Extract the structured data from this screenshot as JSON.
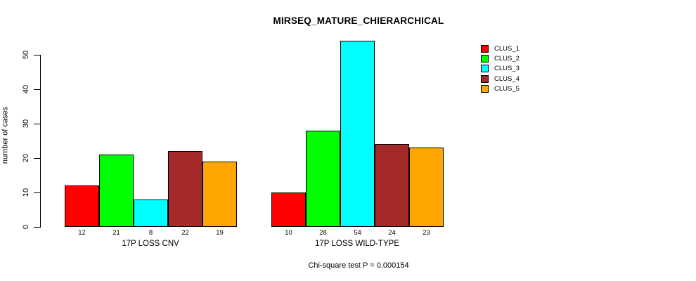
{
  "title": "MIRSEQ_MATURE_CHIERARCHICAL",
  "ylabel": "number of cases",
  "caption": "Chi-square test P = 0.000154",
  "legend": {
    "position": "top-right",
    "items": [
      {
        "label": "CLUS_1",
        "color": "#FF0000"
      },
      {
        "label": "CLUS_2",
        "color": "#00FF00"
      },
      {
        "label": "CLUS_3",
        "color": "#00FFFF"
      },
      {
        "label": "CLUS_4",
        "color": "#A52A2A"
      },
      {
        "label": "CLUS_5",
        "color": "#FFA500"
      }
    ]
  },
  "chart_data": {
    "type": "bar",
    "title": "MIRSEQ_MATURE_CHIERARCHICAL",
    "xlabel": "",
    "ylabel": "number of cases",
    "ylim": [
      0,
      54
    ],
    "yticks": [
      0,
      10,
      20,
      30,
      40,
      50
    ],
    "grid": false,
    "legend_position": "top-right",
    "series": [
      {
        "name": "CLUS_1",
        "color": "#FF0000",
        "values": [
          12,
          10
        ]
      },
      {
        "name": "CLUS_2",
        "color": "#00FF00",
        "values": [
          21,
          28
        ]
      },
      {
        "name": "CLUS_3",
        "color": "#00FFFF",
        "values": [
          8,
          54
        ]
      },
      {
        "name": "CLUS_4",
        "color": "#A52A2A",
        "values": [
          22,
          24
        ]
      },
      {
        "name": "CLUS_5",
        "color": "#FFA500",
        "values": [
          19,
          23
        ]
      }
    ],
    "groups": [
      {
        "label": "17P LOSS CNV",
        "values": [
          12,
          21,
          8,
          22,
          19
        ],
        "value_labels": [
          "12",
          "21",
          "8",
          "22",
          "19"
        ]
      },
      {
        "label": "17P LOSS WILD-TYPE",
        "values": [
          10,
          28,
          54,
          24,
          23
        ],
        "value_labels": [
          "10",
          "28",
          "54",
          "24",
          "23"
        ]
      }
    ],
    "bar_border_color": "#000000"
  }
}
